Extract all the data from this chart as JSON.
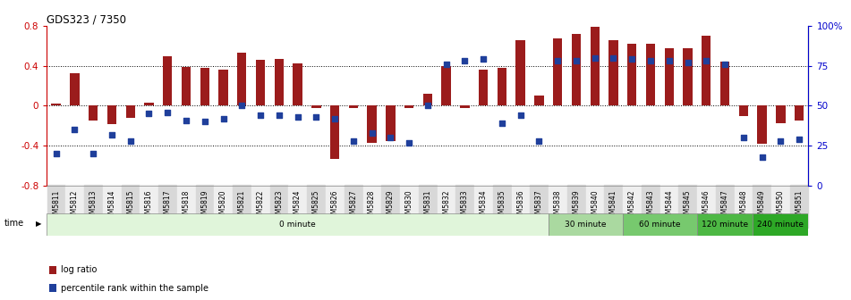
{
  "title": "GDS323 / 7350",
  "samples": [
    "GSM5811",
    "GSM5812",
    "GSM5813",
    "GSM5814",
    "GSM5815",
    "GSM5816",
    "GSM5817",
    "GSM5818",
    "GSM5819",
    "GSM5820",
    "GSM5821",
    "GSM5822",
    "GSM5823",
    "GSM5824",
    "GSM5825",
    "GSM5826",
    "GSM5827",
    "GSM5828",
    "GSM5829",
    "GSM5830",
    "GSM5831",
    "GSM5832",
    "GSM5833",
    "GSM5834",
    "GSM5835",
    "GSM5836",
    "GSM5837",
    "GSM5838",
    "GSM5839",
    "GSM5840",
    "GSM5841",
    "GSM5842",
    "GSM5843",
    "GSM5844",
    "GSM5845",
    "GSM5846",
    "GSM5847",
    "GSM5848",
    "GSM5849",
    "GSM5850",
    "GSM5851"
  ],
  "log_ratio": [
    0.02,
    0.32,
    -0.15,
    -0.18,
    -0.12,
    0.03,
    0.49,
    0.39,
    0.38,
    0.36,
    0.53,
    0.46,
    0.47,
    0.42,
    -0.02,
    -0.53,
    -0.02,
    -0.37,
    -0.35,
    -0.02,
    0.12,
    0.4,
    -0.02,
    0.36,
    0.38,
    0.65,
    0.1,
    0.67,
    0.72,
    0.79,
    0.65,
    0.62,
    0.62,
    0.57,
    0.57,
    0.7,
    0.44,
    -0.1,
    -0.38,
    -0.17,
    -0.15
  ],
  "percentile": [
    20,
    35,
    20,
    32,
    28,
    45,
    46,
    41,
    40,
    42,
    50,
    44,
    44,
    43,
    43,
    42,
    28,
    33,
    30,
    27,
    50,
    76,
    78,
    79,
    39,
    44,
    28,
    78,
    78,
    80,
    80,
    79,
    78,
    78,
    77,
    78,
    76,
    30,
    18,
    28,
    29
  ],
  "bar_color": "#9b1c1c",
  "dot_color": "#1f3f9b",
  "ylim_left": [
    -0.8,
    0.8
  ],
  "yticks_left": [
    -0.8,
    -0.4,
    0.0,
    0.4,
    0.8
  ],
  "ytick_labels_left": [
    "-0.8",
    "-0.4",
    "0",
    "0.4",
    "0.8"
  ],
  "ytick_labels_right": [
    "0",
    "25",
    "50",
    "75",
    "100%"
  ],
  "dotted_lines": [
    -0.4,
    0.0,
    0.4
  ],
  "time_groups": [
    {
      "label": "0 minute",
      "start": 0,
      "end": 27,
      "color": "#e0f5da"
    },
    {
      "label": "30 minute",
      "start": 27,
      "end": 31,
      "color": "#aad9a0"
    },
    {
      "label": "60 minute",
      "start": 31,
      "end": 35,
      "color": "#77c96e"
    },
    {
      "label": "120 minute",
      "start": 35,
      "end": 38,
      "color": "#4db844"
    },
    {
      "label": "240 minute",
      "start": 38,
      "end": 41,
      "color": "#2da826"
    }
  ],
  "axis_color_left": "#cc0000",
  "axis_color_right": "#0000cc",
  "bg_color": "#ffffff",
  "tick_bg_even": "#d8d8d8",
  "tick_bg_odd": "#efefef",
  "time_label": "time"
}
